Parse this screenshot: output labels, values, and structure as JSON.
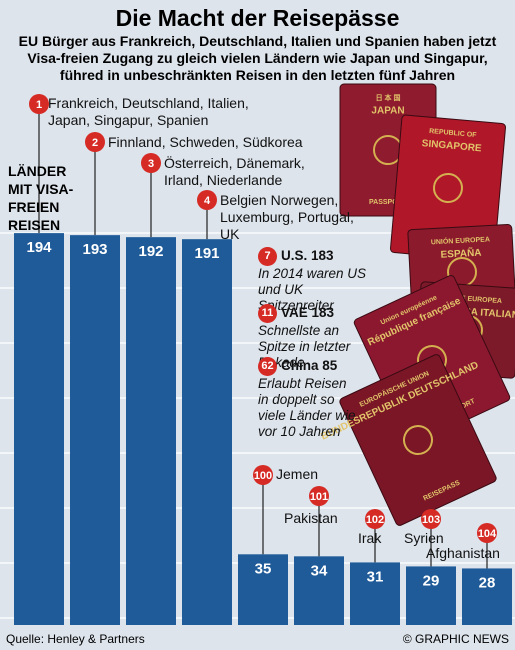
{
  "chart_data": {
    "type": "bar",
    "title": "Die Macht der Reisepässe",
    "subtitle": "EU Bürger aus Frankreich, Deutschland, Italien und Spanien haben jetzt Visa-freien Zugang zu gleich vielen Ländern wie Japan und Singapur, führed in unbeschränkten Reisen in den letzten fünf Jahren",
    "y_label": "LÄNDER MIT VISA-FREIEN REISEN",
    "ranks": [
      "1",
      "2",
      "3",
      "4",
      "100",
      "101",
      "102",
      "103",
      "104"
    ],
    "categories": [
      "Frankreich, Deutschland, Italien, Japan, Singapur, Spanien",
      "Finnland, Schweden, Südkorea",
      "Österreich, Dänemark, Irland, Niederlande",
      "Belgien Norwegen, Luxemburg, Portugal, UK",
      "Jemen",
      "Pakistan",
      "Irak",
      "Syrien",
      "Afghanistan"
    ],
    "values": [
      194,
      193,
      192,
      191,
      35,
      34,
      31,
      29,
      28
    ],
    "color": "#1f5b98",
    "annotations": [
      {
        "rank": "7",
        "title": "U.S. 183",
        "text": "In 2014 waren US und UK Spitzenreiter"
      },
      {
        "rank": "11",
        "title": "VAE 183",
        "text": "Schnellste an Spitze in letzter Dekade"
      },
      {
        "rank": "62",
        "title": "China 85",
        "text": "Erlaubt Reisen in doppelt so viele Länder wie vor 10 Jahren"
      }
    ],
    "passports": [
      {
        "color": "#8e1b2e",
        "lines": [
          "日 本 国",
          "JAPAN",
          "PASSPORT"
        ]
      },
      {
        "color": "#b0182a",
        "lines": [
          "REPUBLIC OF",
          "SINGAPORE",
          "PASSPORT"
        ]
      },
      {
        "color": "#8a1a2c",
        "lines": [
          "UNIÓN EUROPEA",
          "ESPAÑA"
        ]
      },
      {
        "color": "#7d1a2a",
        "lines": [
          "UNIONE EUROPEA",
          "REPUBBLICA ITALIANA"
        ]
      },
      {
        "color": "#8c1830",
        "lines": [
          "Union européenne",
          "République française",
          "PASSEPORT"
        ]
      },
      {
        "color": "#7a1626",
        "lines": [
          "EUROPÄISCHE UNION",
          "BUNDESREPUBLIK DEUTSCHLAND",
          "REISEPASS"
        ]
      }
    ],
    "source": "Quelle: Henley & Partners",
    "credit": "© GRAPHIC NEWS"
  }
}
